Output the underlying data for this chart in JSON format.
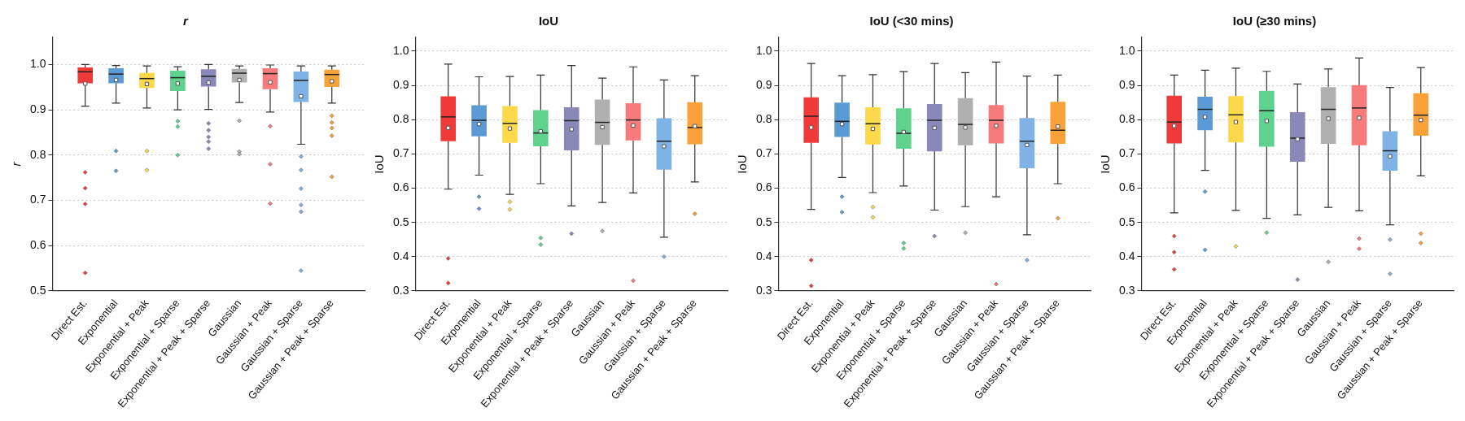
{
  "chart_data": [
    {
      "type": "box",
      "title": "r",
      "ylabel": "r",
      "categories": [
        "Direct Est.",
        "Exponential",
        "Exponential + Peak",
        "Exponential + Sparse",
        "Exponential + Peak + Sparse",
        "Gaussian",
        "Gaussian + Peak",
        "Gaussian + Sparse",
        "Gaussian + Peak + Sparse"
      ],
      "colors": [
        "#f03a3a",
        "#5b9bd5",
        "#fcd94a",
        "#5fd38d",
        "#8a88b8",
        "#b0b0b0",
        "#f87a7a",
        "#7fb2e5",
        "#f9a23a"
      ],
      "boxes": [
        {
          "low": 0.908,
          "q1": 0.959,
          "median": 0.984,
          "q3": 0.993,
          "high": 1.0,
          "mean": 0.958,
          "outliers": [
            0.762,
            0.727,
            0.692,
            0.54
          ]
        },
        {
          "low": 0.915,
          "q1": 0.959,
          "median": 0.979,
          "q3": 0.991,
          "high": 0.998,
          "mean": 0.966,
          "outliers": [
            0.809,
            0.765
          ]
        },
        {
          "low": 0.904,
          "q1": 0.949,
          "median": 0.969,
          "q3": 0.981,
          "high": 0.997,
          "mean": 0.957,
          "outliers": [
            0.809,
            0.767
          ]
        },
        {
          "low": 0.9,
          "q1": 0.942,
          "median": 0.971,
          "q3": 0.986,
          "high": 0.995,
          "mean": 0.958,
          "outliers": [
            0.875,
            0.863,
            0.8
          ]
        },
        {
          "low": 0.901,
          "q1": 0.952,
          "median": 0.974,
          "q3": 0.989,
          "high": 1.0,
          "mean": 0.96,
          "outliers": [
            0.87,
            0.855,
            0.84,
            0.83,
            0.814
          ]
        },
        {
          "low": 0.916,
          "q1": 0.961,
          "median": 0.981,
          "q3": 0.99,
          "high": 0.997,
          "mean": 0.966,
          "outliers": [
            0.876,
            0.808,
            0.802
          ]
        },
        {
          "low": 0.895,
          "q1": 0.946,
          "median": 0.98,
          "q3": 0.991,
          "high": 0.999,
          "mean": 0.961,
          "outliers": [
            0.864,
            0.78,
            0.693
          ]
        },
        {
          "low": 0.824,
          "q1": 0.918,
          "median": 0.965,
          "q3": 0.984,
          "high": 0.997,
          "mean": 0.93,
          "outliers": [
            0.797,
            0.767,
            0.726,
            0.69,
            0.675,
            0.545
          ]
        },
        {
          "low": 0.915,
          "q1": 0.951,
          "median": 0.978,
          "q3": 0.988,
          "high": 0.997,
          "mean": 0.963,
          "outliers": [
            0.887,
            0.872,
            0.86,
            0.843,
            0.752
          ]
        }
      ],
      "ylim": [
        0.5,
        1.06
      ],
      "yticks": [
        {
          "value": 0.5,
          "label": "0.5"
        },
        {
          "value": 0.6,
          "label": "0.6"
        },
        {
          "value": 0.7,
          "label": "0.7"
        },
        {
          "value": 0.8,
          "label": "0.8"
        },
        {
          "value": 0.9,
          "label": "0.9"
        },
        {
          "value": 1,
          "label": "1.0"
        }
      ],
      "grid": "y"
    },
    {
      "type": "box",
      "title": "IoU",
      "ylabel": "IoU",
      "categories": [
        "Direct Est.",
        "Exponential",
        "Exponential + Peak",
        "Exponential + Sparse",
        "Exponential + Peak + Sparse",
        "Gaussian",
        "Gaussian + Peak",
        "Gaussian + Sparse",
        "Gaussian + Peak + Sparse"
      ],
      "colors": [
        "#f03a3a",
        "#5b9bd5",
        "#fcd94a",
        "#5fd38d",
        "#8a88b8",
        "#b0b0b0",
        "#f87a7a",
        "#7fb2e5",
        "#f9a23a"
      ],
      "boxes": [
        {
          "low": 0.597,
          "q1": 0.738,
          "median": 0.808,
          "q3": 0.867,
          "high": 0.962,
          "mean": 0.776,
          "outliers": [
            0.395,
            0.323
          ]
        },
        {
          "low": 0.638,
          "q1": 0.752,
          "median": 0.798,
          "q3": 0.841,
          "high": 0.925,
          "mean": 0.787,
          "outliers": [
            0.575,
            0.54
          ]
        },
        {
          "low": 0.582,
          "q1": 0.733,
          "median": 0.789,
          "q3": 0.839,
          "high": 0.926,
          "mean": 0.774,
          "outliers": [
            0.56,
            0.538
          ]
        },
        {
          "low": 0.613,
          "q1": 0.723,
          "median": 0.761,
          "q3": 0.827,
          "high": 0.93,
          "mean": 0.766,
          "outliers": [
            0.455,
            0.435
          ]
        },
        {
          "low": 0.548,
          "q1": 0.711,
          "median": 0.797,
          "q3": 0.835,
          "high": 0.958,
          "mean": 0.772,
          "outliers": [
            0.467
          ]
        },
        {
          "low": 0.558,
          "q1": 0.727,
          "median": 0.792,
          "q3": 0.858,
          "high": 0.921,
          "mean": 0.778,
          "outliers": [
            0.475
          ]
        },
        {
          "low": 0.586,
          "q1": 0.74,
          "median": 0.799,
          "q3": 0.847,
          "high": 0.954,
          "mean": 0.783,
          "outliers": [
            0.33
          ]
        },
        {
          "low": 0.457,
          "q1": 0.655,
          "median": 0.737,
          "q3": 0.803,
          "high": 0.916,
          "mean": 0.722,
          "outliers": [
            0.4
          ]
        },
        {
          "low": 0.618,
          "q1": 0.729,
          "median": 0.777,
          "q3": 0.85,
          "high": 0.928,
          "mean": 0.781,
          "outliers": [
            0.525
          ]
        }
      ],
      "ylim": [
        0.3,
        1.04
      ],
      "yticks": [
        {
          "value": 0.3,
          "label": "0.3"
        },
        {
          "value": 0.4,
          "label": "0.4"
        },
        {
          "value": 0.5,
          "label": "0.5"
        },
        {
          "value": 0.6,
          "label": "0.6"
        },
        {
          "value": 0.7,
          "label": "0.7"
        },
        {
          "value": 0.8,
          "label": "0.8"
        },
        {
          "value": 0.9,
          "label": "0.9"
        },
        {
          "value": 1,
          "label": "1.0"
        }
      ],
      "grid": "y"
    },
    {
      "type": "box",
      "title": "IoU (<30 mins)",
      "ylabel": "IoU",
      "categories": [
        "Direct Est.",
        "Exponential",
        "Exponential + Peak",
        "Exponential + Sparse",
        "Exponential + Peak + Sparse",
        "Gaussian",
        "Gaussian + Peak",
        "Gaussian + Sparse",
        "Gaussian + Peak + Sparse"
      ],
      "colors": [
        "#f03a3a",
        "#5b9bd5",
        "#fcd94a",
        "#5fd38d",
        "#8a88b8",
        "#b0b0b0",
        "#f87a7a",
        "#7fb2e5",
        "#f9a23a"
      ],
      "boxes": [
        {
          "low": 0.538,
          "q1": 0.733,
          "median": 0.81,
          "q3": 0.864,
          "high": 0.964,
          "mean": 0.777,
          "outliers": [
            0.39,
            0.315
          ]
        },
        {
          "low": 0.631,
          "q1": 0.75,
          "median": 0.795,
          "q3": 0.849,
          "high": 0.928,
          "mean": 0.787,
          "outliers": [
            0.575,
            0.53
          ]
        },
        {
          "low": 0.587,
          "q1": 0.728,
          "median": 0.788,
          "q3": 0.835,
          "high": 0.931,
          "mean": 0.773,
          "outliers": [
            0.545,
            0.515
          ]
        },
        {
          "low": 0.606,
          "q1": 0.716,
          "median": 0.76,
          "q3": 0.832,
          "high": 0.94,
          "mean": 0.764,
          "outliers": [
            0.44,
            0.424
          ]
        },
        {
          "low": 0.536,
          "q1": 0.708,
          "median": 0.798,
          "q3": 0.845,
          "high": 0.964,
          "mean": 0.776,
          "outliers": [
            0.46
          ]
        },
        {
          "low": 0.546,
          "q1": 0.726,
          "median": 0.786,
          "q3": 0.862,
          "high": 0.937,
          "mean": 0.777,
          "outliers": [
            0.47
          ]
        },
        {
          "low": 0.575,
          "q1": 0.731,
          "median": 0.798,
          "q3": 0.842,
          "high": 0.968,
          "mean": 0.782,
          "outliers": [
            0.32
          ]
        },
        {
          "low": 0.464,
          "q1": 0.659,
          "median": 0.737,
          "q3": 0.804,
          "high": 0.927,
          "mean": 0.726,
          "outliers": [
            0.39
          ]
        },
        {
          "low": 0.613,
          "q1": 0.73,
          "median": 0.769,
          "q3": 0.851,
          "high": 0.93,
          "mean": 0.78,
          "outliers": [
            0.512
          ]
        }
      ],
      "ylim": [
        0.3,
        1.04
      ],
      "yticks": [
        {
          "value": 0.3,
          "label": "0.3"
        },
        {
          "value": 0.4,
          "label": "0.4"
        },
        {
          "value": 0.5,
          "label": "0.5"
        },
        {
          "value": 0.6,
          "label": "0.6"
        },
        {
          "value": 0.7,
          "label": "0.7"
        },
        {
          "value": 0.8,
          "label": "0.8"
        },
        {
          "value": 0.9,
          "label": "0.9"
        },
        {
          "value": 1,
          "label": "1.0"
        }
      ],
      "grid": "y"
    },
    {
      "type": "box",
      "title": "IoU (≥30 mins)",
      "ylabel": "IoU",
      "categories": [
        "Direct Est.",
        "Exponential",
        "Exponential + Peak",
        "Exponential + Sparse",
        "Exponential + Peak + Sparse",
        "Gaussian",
        "Gaussian + Peak",
        "Gaussian + Sparse",
        "Gaussian + Peak + Sparse"
      ],
      "colors": [
        "#f03a3a",
        "#5b9bd5",
        "#fcd94a",
        "#5fd38d",
        "#8a88b8",
        "#b0b0b0",
        "#f87a7a",
        "#7fb2e5",
        "#f9a23a"
      ],
      "boxes": [
        {
          "low": 0.528,
          "q1": 0.731,
          "median": 0.793,
          "q3": 0.869,
          "high": 0.93,
          "mean": 0.782,
          "outliers": [
            0.46,
            0.413,
            0.363
          ]
        },
        {
          "low": 0.652,
          "q1": 0.77,
          "median": 0.83,
          "q3": 0.866,
          "high": 0.944,
          "mean": 0.808,
          "outliers": [
            0.59,
            0.42
          ]
        },
        {
          "low": 0.535,
          "q1": 0.734,
          "median": 0.814,
          "q3": 0.868,
          "high": 0.95,
          "mean": 0.793,
          "outliers": [
            0.43
          ]
        },
        {
          "low": 0.512,
          "q1": 0.722,
          "median": 0.826,
          "q3": 0.883,
          "high": 0.941,
          "mean": 0.796,
          "outliers": [
            0.47
          ]
        },
        {
          "low": 0.522,
          "q1": 0.678,
          "median": 0.746,
          "q3": 0.821,
          "high": 0.904,
          "mean": 0.743,
          "outliers": [
            0.333
          ]
        },
        {
          "low": 0.544,
          "q1": 0.73,
          "median": 0.83,
          "q3": 0.894,
          "high": 0.948,
          "mean": 0.803,
          "outliers": [
            0.385
          ]
        },
        {
          "low": 0.534,
          "q1": 0.726,
          "median": 0.834,
          "q3": 0.9,
          "high": 0.98,
          "mean": 0.805,
          "outliers": [
            0.453,
            0.423
          ]
        },
        {
          "low": 0.493,
          "q1": 0.652,
          "median": 0.709,
          "q3": 0.765,
          "high": 0.894,
          "mean": 0.693,
          "outliers": [
            0.45,
            0.35
          ]
        },
        {
          "low": 0.636,
          "q1": 0.754,
          "median": 0.813,
          "q3": 0.876,
          "high": 0.952,
          "mean": 0.799,
          "outliers": [
            0.467,
            0.44
          ]
        }
      ],
      "ylim": [
        0.3,
        1.04
      ],
      "yticks": [
        {
          "value": 0.3,
          "label": "0.3"
        },
        {
          "value": 0.4,
          "label": "0.4"
        },
        {
          "value": 0.5,
          "label": "0.5"
        },
        {
          "value": 0.6,
          "label": "0.6"
        },
        {
          "value": 0.7,
          "label": "0.7"
        },
        {
          "value": 0.8,
          "label": "0.8"
        },
        {
          "value": 0.9,
          "label": "0.9"
        },
        {
          "value": 1,
          "label": "1.0"
        }
      ],
      "grid": "y"
    }
  ]
}
